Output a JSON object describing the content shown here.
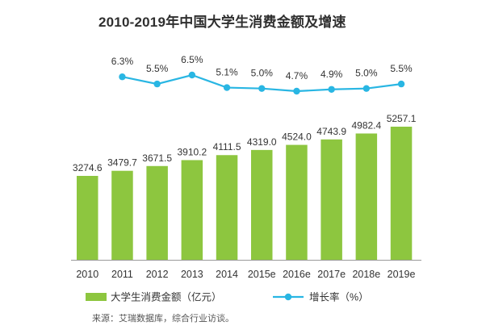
{
  "chart_data": {
    "type": "bar",
    "title": "2010-2019年中国大学生消费金额及增速",
    "categories": [
      "2010",
      "2011",
      "2012",
      "2013",
      "2014",
      "2015e",
      "2016e",
      "2017e",
      "2018e",
      "2019e"
    ],
    "series": [
      {
        "name": "大学生消费金额（亿元）",
        "kind": "bar",
        "values": [
          3274.6,
          3479.7,
          3671.5,
          3910.2,
          4111.5,
          4319.0,
          4524.0,
          4743.9,
          4982.4,
          5257.1
        ],
        "labels": [
          "3274.6",
          "3479.7",
          "3671.5",
          "3910.2",
          "4111.5",
          "4319.0",
          "4524.0",
          "4743.9",
          "4982.4",
          "5257.1"
        ]
      },
      {
        "name": "增长率（%）",
        "kind": "line",
        "values": [
          null,
          6.3,
          5.5,
          6.5,
          5.1,
          5.0,
          4.7,
          4.9,
          5.0,
          5.5
        ],
        "labels": [
          "",
          "6.3%",
          "5.5%",
          "6.5%",
          "5.1%",
          "5.0%",
          "4.7%",
          "4.9%",
          "5.0%",
          "5.5%"
        ]
      }
    ],
    "legend_position": "bottom",
    "grid": false
  },
  "colors": {
    "bar": "#8dc63f",
    "line": "#29b6e3",
    "axis": "#999999"
  },
  "source": "来源：艾瑞数据库，综合行业访谈。"
}
